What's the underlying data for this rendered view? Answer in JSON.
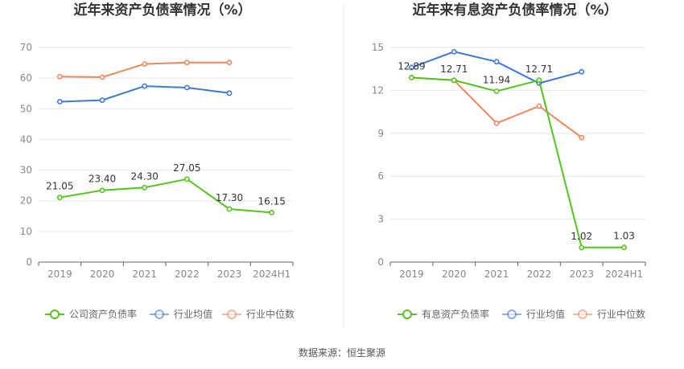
{
  "chart_data": [
    {
      "type": "line",
      "title": "近年来资产负债率情况（%）",
      "categories": [
        "2019",
        "2020",
        "2021",
        "2022",
        "2023",
        "2024H1"
      ],
      "ylim": [
        0,
        70
      ],
      "yticks": [
        0,
        10,
        20,
        30,
        40,
        50,
        60,
        70
      ],
      "grid": true,
      "legend_position": "bottom",
      "series": [
        {
          "name": "公司资产负债率",
          "color": "#52c41a",
          "values": [
            21.05,
            23.4,
            24.3,
            27.05,
            17.3,
            16.15
          ],
          "labels": [
            "21.05",
            "23.40",
            "24.30",
            "27.05",
            "17.30",
            "16.15"
          ]
        },
        {
          "name": "行业均值",
          "color": "#3a78d8",
          "values": [
            52.3,
            52.8,
            57.4,
            56.9,
            55.1,
            null
          ]
        },
        {
          "name": "行业中位数",
          "color": "#f0875a",
          "values": [
            60.5,
            60.3,
            64.6,
            65.1,
            65.1,
            null
          ]
        }
      ]
    },
    {
      "type": "line",
      "title": "近年来有息资产负债率情况（%）",
      "categories": [
        "2019",
        "2020",
        "2021",
        "2022",
        "2023",
        "2024H1"
      ],
      "ylim": [
        0,
        15
      ],
      "yticks": [
        0,
        3,
        6,
        9,
        12,
        15
      ],
      "grid": true,
      "legend_position": "bottom",
      "series": [
        {
          "name": "有息资产负债率",
          "color": "#52c41a",
          "values": [
            12.89,
            12.71,
            11.94,
            12.71,
            1.02,
            1.03
          ],
          "labels": [
            "12.89",
            "12.71",
            "11.94",
            "12.71",
            "1.02",
            "1.03"
          ]
        },
        {
          "name": "行业均值",
          "color": "#3a78d8",
          "values": [
            13.6,
            14.7,
            14.0,
            12.5,
            13.3,
            null
          ]
        },
        {
          "name": "行业中位数",
          "color": "#f0875a",
          "values": [
            12.9,
            12.7,
            9.7,
            10.9,
            8.7,
            null
          ]
        }
      ]
    }
  ],
  "source": "数据来源：恒生聚源",
  "colors": {
    "grid": "#e6e6ee",
    "axis": "#666666",
    "divider": "#e8e8e8"
  }
}
